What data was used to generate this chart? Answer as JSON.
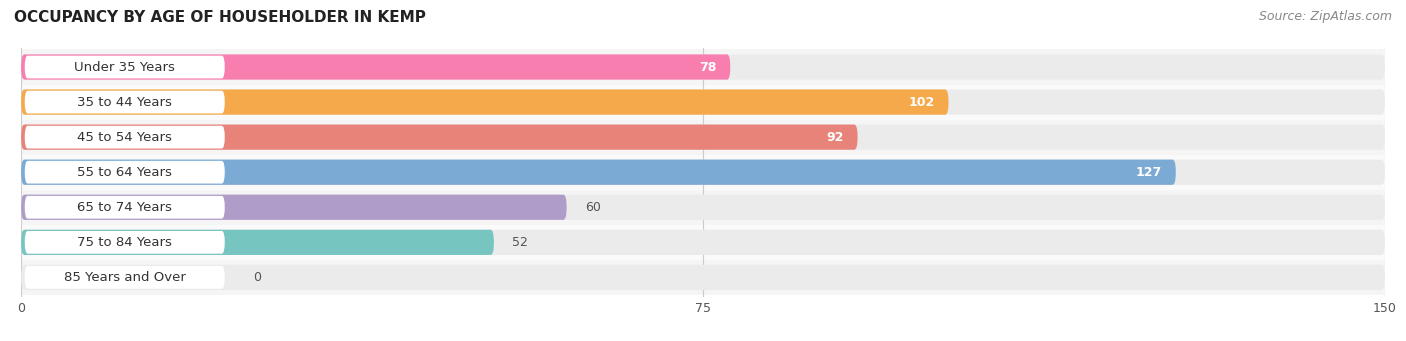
{
  "title": "OCCUPANCY BY AGE OF HOUSEHOLDER IN KEMP",
  "source": "Source: ZipAtlas.com",
  "categories": [
    "Under 35 Years",
    "35 to 44 Years",
    "45 to 54 Years",
    "55 to 64 Years",
    "65 to 74 Years",
    "75 to 84 Years",
    "85 Years and Over"
  ],
  "values": [
    78,
    102,
    92,
    127,
    60,
    52,
    0
  ],
  "bar_colors": [
    "#F97EB0",
    "#F5A94A",
    "#E8837A",
    "#7BAAD4",
    "#B09CC8",
    "#76C5C0",
    "#C0C8E8"
  ],
  "bar_bg_color": "#EBEBEB",
  "row_bg_colors": [
    "#F5F5F5",
    "#FAFAFA"
  ],
  "xlim": [
    0,
    150
  ],
  "xticks": [
    0,
    75,
    150
  ],
  "title_fontsize": 11,
  "source_fontsize": 9,
  "label_fontsize": 9.5,
  "value_fontsize": 9,
  "bar_height": 0.72,
  "fig_width": 14.06,
  "fig_height": 3.41
}
